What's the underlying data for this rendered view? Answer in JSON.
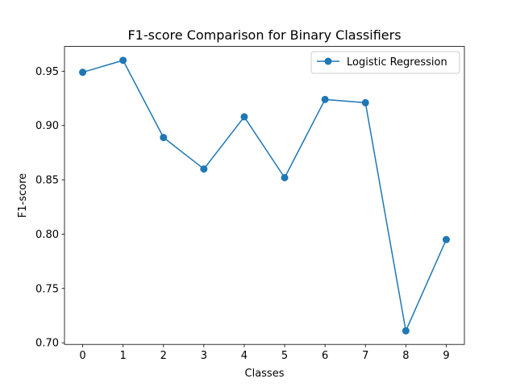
{
  "chart_data": {
    "type": "line",
    "title": "F1-score Comparison for Binary Classifiers",
    "xlabel": "Classes",
    "ylabel": "F1-score",
    "x": [
      0,
      1,
      2,
      3,
      4,
      5,
      6,
      7,
      8,
      9
    ],
    "series": [
      {
        "name": "Logistic Regression",
        "values": [
          0.949,
          0.96,
          0.889,
          0.86,
          0.908,
          0.852,
          0.924,
          0.921,
          0.711,
          0.795
        ],
        "color": "#1f77b4",
        "marker": "circle"
      }
    ],
    "xticks": [
      "0",
      "1",
      "2",
      "3",
      "4",
      "5",
      "6",
      "7",
      "8",
      "9"
    ],
    "yticks": [
      "0.70",
      "0.75",
      "0.80",
      "0.85",
      "0.90",
      "0.95"
    ],
    "ytick_values": [
      0.7,
      0.75,
      0.8,
      0.85,
      0.9,
      0.95
    ],
    "xlim": [
      -0.45,
      9.45
    ],
    "ylim": [
      0.6985,
      0.9728
    ],
    "grid": false,
    "legend_position": "top-right"
  }
}
